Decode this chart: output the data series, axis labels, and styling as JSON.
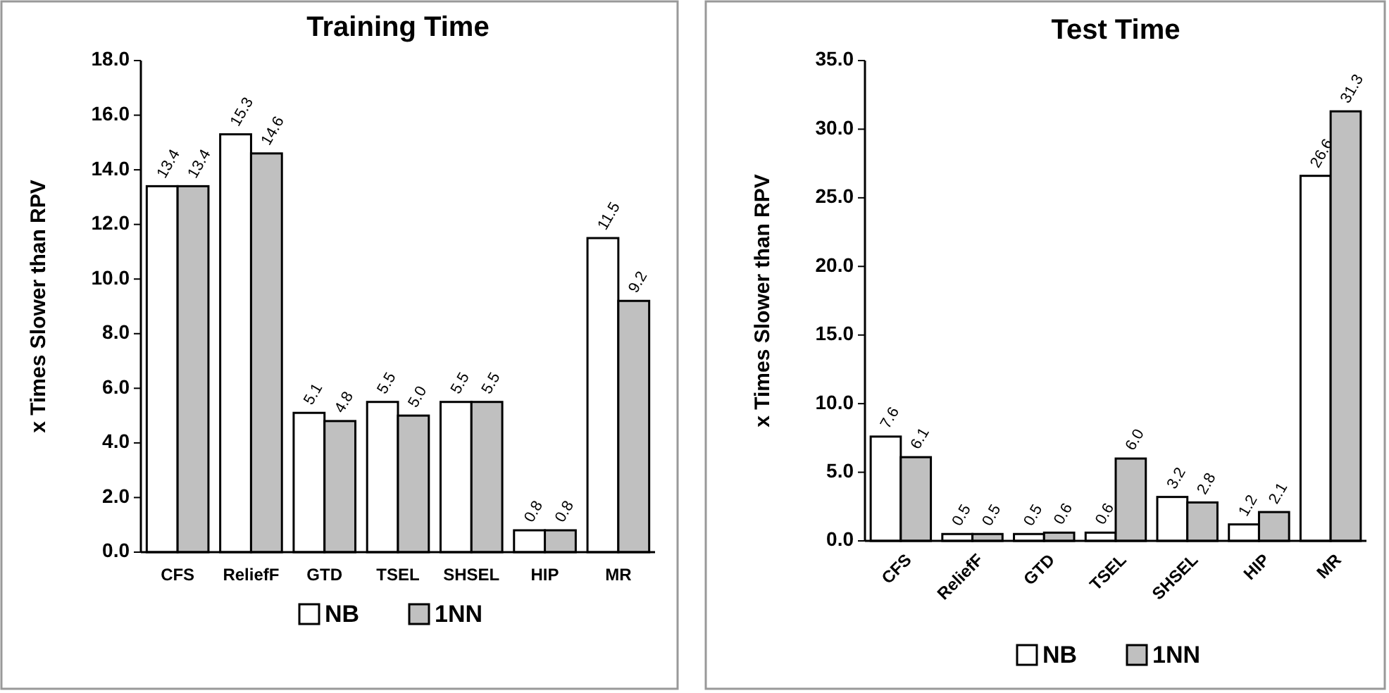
{
  "chart_data": [
    {
      "type": "bar",
      "title": "Training Time",
      "ylabel": "x Times Slower than RPV",
      "categories": [
        "CFS",
        "ReliefF",
        "GTD",
        "TSEL",
        "SHSEL",
        "HIP",
        "MR"
      ],
      "series": [
        {
          "name": "NB",
          "color": "#ffffff",
          "values": [
            13.4,
            15.3,
            5.1,
            5.5,
            5.5,
            0.8,
            11.5
          ],
          "value_labels": [
            "13.4",
            "15.3",
            "5.1",
            "5.5",
            "5.5",
            "0.8",
            "11.5"
          ]
        },
        {
          "name": "1NN",
          "color": "#c0c0c0",
          "values": [
            13.4,
            14.6,
            4.8,
            5.0,
            5.5,
            0.8,
            9.2
          ],
          "value_labels": [
            "13.4",
            "14.6",
            "4.8",
            "5.0",
            "5.5",
            "0.8",
            "9.2"
          ]
        }
      ],
      "ylim": [
        0,
        18
      ],
      "yticks": [
        {
          "value": 0,
          "label": "0.0"
        },
        {
          "value": 2,
          "label": "2.0"
        },
        {
          "value": 4,
          "label": "4.0"
        },
        {
          "value": 6,
          "label": "6.0"
        },
        {
          "value": 8,
          "label": "8.0"
        },
        {
          "value": 10,
          "label": "10.0"
        },
        {
          "value": 12,
          "label": "12.0"
        },
        {
          "value": 14,
          "label": "14.0"
        },
        {
          "value": 16,
          "label": "16.0"
        },
        {
          "value": 18,
          "label": "18.0"
        }
      ],
      "legend": "bottom",
      "grid": false
    },
    {
      "type": "bar",
      "title": "Test Time",
      "ylabel": "x Times Slower than RPV",
      "categories": [
        "CFS",
        "ReliefF",
        "GTD",
        "TSEL",
        "SHSEL",
        "HIP",
        "MR"
      ],
      "series": [
        {
          "name": "NB",
          "color": "#ffffff",
          "values": [
            7.6,
            0.5,
            0.5,
            0.6,
            3.2,
            1.2,
            26.6
          ],
          "value_labels": [
            "7.6",
            "0.5",
            "0.5",
            "0.6",
            "3.2",
            "1.2",
            "26.6"
          ]
        },
        {
          "name": "1NN",
          "color": "#c0c0c0",
          "values": [
            6.1,
            0.5,
            0.6,
            6.0,
            2.8,
            2.1,
            31.3
          ],
          "value_labels": [
            "6.1",
            "0.5",
            "0.6",
            "6.0",
            "2.8",
            "2.1",
            "31.3"
          ]
        }
      ],
      "ylim": [
        0,
        35
      ],
      "yticks": [
        {
          "value": 0,
          "label": "0.0"
        },
        {
          "value": 5,
          "label": "5.0"
        },
        {
          "value": 10,
          "label": "10.0"
        },
        {
          "value": 15,
          "label": "15.0"
        },
        {
          "value": 20,
          "label": "20.0"
        },
        {
          "value": 25,
          "label": "25.0"
        },
        {
          "value": 30,
          "label": "30.0"
        },
        {
          "value": 35,
          "label": "35.0"
        }
      ],
      "legend": "bottom",
      "grid": false
    }
  ]
}
